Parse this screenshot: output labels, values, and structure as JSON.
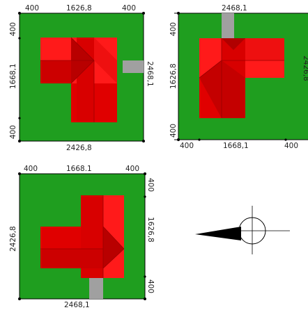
{
  "plans": [
    {
      "top_dims": [
        "400",
        "1626,8",
        "400"
      ],
      "left_dims": [
        "400",
        "1668,1",
        "400"
      ],
      "right_dim": "2468,1",
      "bottom_dim": "2426,8"
    },
    {
      "top_dim": "2468,1",
      "left_dims": [
        "400",
        "1626,8",
        "400"
      ],
      "right_dim": "2426,8",
      "bottom_dims": [
        "400",
        "1668,1",
        "400"
      ]
    },
    {
      "top_dims": [
        "400",
        "1668.1",
        "400"
      ],
      "left_dim": "2426,8",
      "right_dims": [
        "400",
        "1626,8",
        "400"
      ],
      "bottom_dim": "2468,1"
    }
  ],
  "colors": {
    "lawn": "#1f9e1f",
    "roof_light": "#ff1a1a",
    "roof_dark": "#cc0000",
    "path": "#a0a0a0"
  },
  "compass": {
    "direction": "west",
    "icon": "north-arrow-icon"
  }
}
